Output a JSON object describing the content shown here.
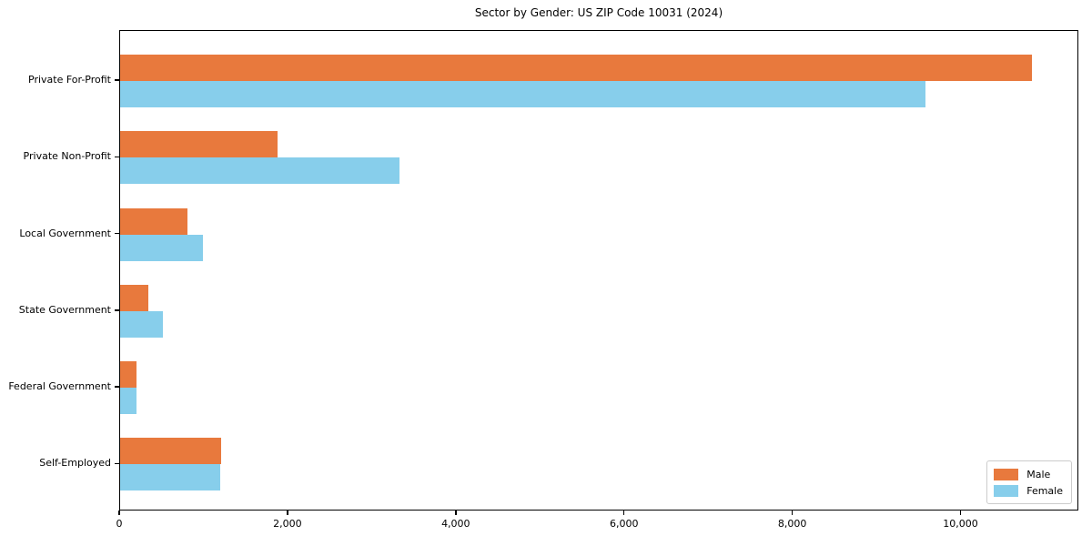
{
  "chart_data": {
    "type": "bar",
    "orientation": "horizontal",
    "title": "Sector by Gender: US ZIP Code 10031 (2024)",
    "categories": [
      "Private For-Profit",
      "Private Non-Profit",
      "Local Government",
      "State Government",
      "Federal Government",
      "Self-Employed"
    ],
    "series": [
      {
        "name": "Male",
        "color": "#e8793d",
        "values": [
          10860,
          1870,
          800,
          340,
          200,
          1200
        ]
      },
      {
        "name": "Female",
        "color": "#87ceeb",
        "values": [
          9590,
          3330,
          990,
          510,
          200,
          1190
        ]
      }
    ],
    "xlim": [
      0,
      11400
    ],
    "xticks": [
      0,
      2000,
      4000,
      6000,
      8000,
      10000
    ],
    "xtick_labels": [
      "0",
      "2,000",
      "4,000",
      "6,000",
      "8,000",
      "10,000"
    ],
    "xlabel": "",
    "ylabel": "",
    "grid": false,
    "legend_position": "lower right",
    "axis_color": "#000000",
    "background_color": "#ffffff"
  }
}
